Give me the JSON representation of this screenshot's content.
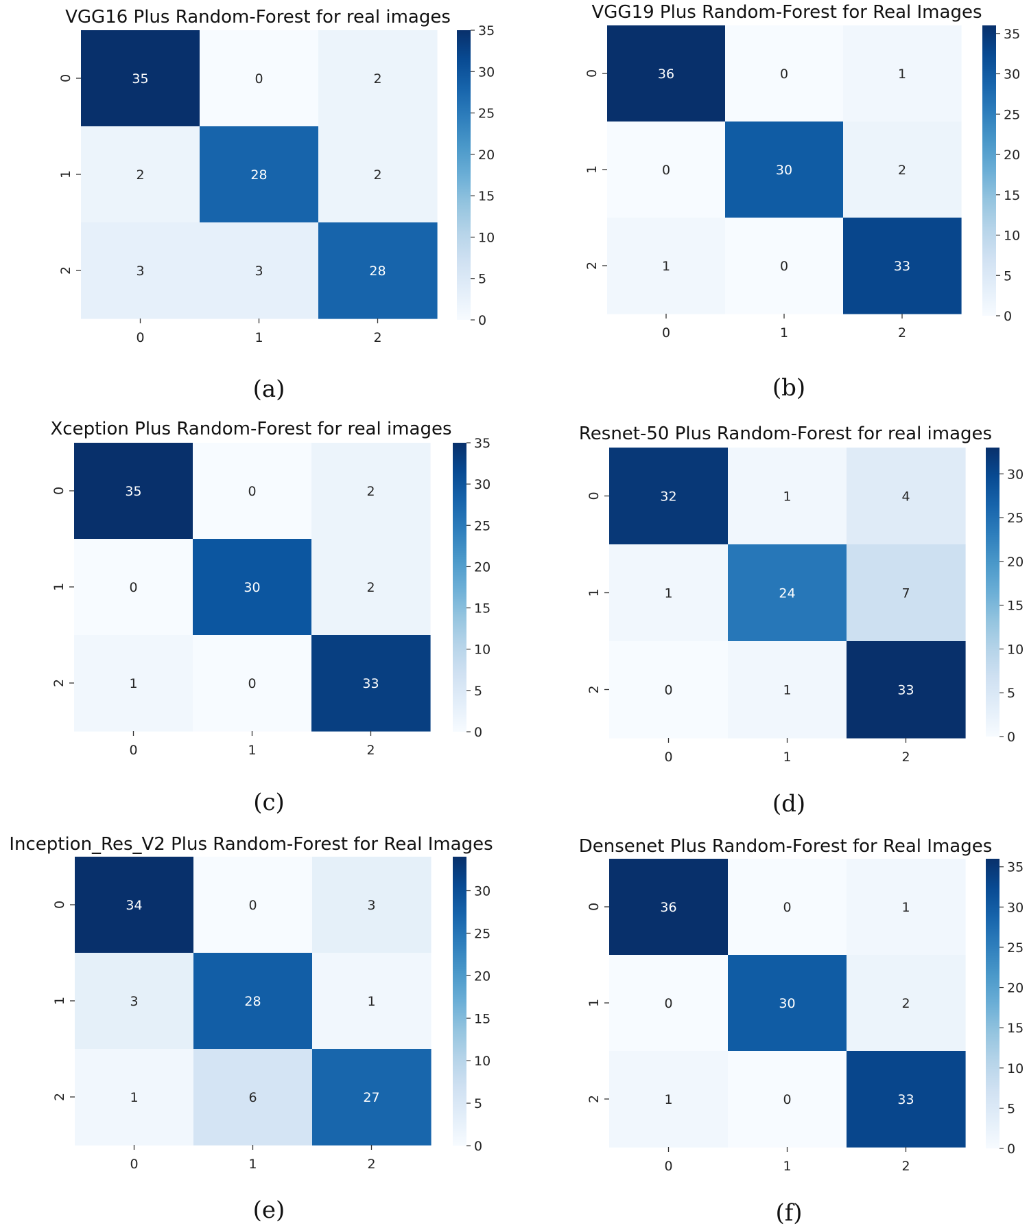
{
  "chart_data": [
    {
      "type": "heatmap",
      "title": "VGG16 Plus Random-Forest for real images",
      "caption": "(a)",
      "x_categories": [
        "0",
        "1",
        "2"
      ],
      "y_categories": [
        "0",
        "1",
        "2"
      ],
      "values": [
        [
          35,
          0,
          2
        ],
        [
          2,
          28,
          2
        ],
        [
          3,
          3,
          28
        ]
      ],
      "colorbar_ticks": [
        0,
        5,
        10,
        15,
        20,
        25,
        30,
        35
      ],
      "color_range": [
        0,
        35
      ],
      "colormap": "Blues"
    },
    {
      "type": "heatmap",
      "title": "VGG19 Plus Random-Forest for Real Images",
      "caption": "(b)",
      "x_categories": [
        "0",
        "1",
        "2"
      ],
      "y_categories": [
        "0",
        "1",
        "2"
      ],
      "values": [
        [
          36,
          0,
          1
        ],
        [
          0,
          30,
          2
        ],
        [
          1,
          0,
          33
        ]
      ],
      "colorbar_ticks": [
        0,
        5,
        10,
        15,
        20,
        25,
        30,
        35
      ],
      "color_range": [
        0,
        36
      ],
      "colormap": "Blues"
    },
    {
      "type": "heatmap",
      "title": "Xception Plus Random-Forest for real images",
      "caption": "(c)",
      "x_categories": [
        "0",
        "1",
        "2"
      ],
      "y_categories": [
        "0",
        "1",
        "2"
      ],
      "values": [
        [
          35,
          0,
          2
        ],
        [
          0,
          30,
          2
        ],
        [
          1,
          0,
          33
        ]
      ],
      "colorbar_ticks": [
        0,
        5,
        10,
        15,
        20,
        25,
        30,
        35
      ],
      "color_range": [
        0,
        35
      ],
      "colormap": "Blues"
    },
    {
      "type": "heatmap",
      "title": "Resnet-50 Plus Random-Forest for real images",
      "caption": "(d)",
      "x_categories": [
        "0",
        "1",
        "2"
      ],
      "y_categories": [
        "0",
        "1",
        "2"
      ],
      "values": [
        [
          32,
          1,
          4
        ],
        [
          1,
          24,
          7
        ],
        [
          0,
          1,
          33
        ]
      ],
      "colorbar_ticks": [
        0,
        5,
        10,
        15,
        20,
        25,
        30
      ],
      "color_range": [
        0,
        33
      ],
      "colormap": "Blues"
    },
    {
      "type": "heatmap",
      "title": "Inception_Res_V2 Plus Random-Forest for Real Images",
      "caption": "(e)",
      "x_categories": [
        "0",
        "1",
        "2"
      ],
      "y_categories": [
        "0",
        "1",
        "2"
      ],
      "values": [
        [
          34,
          0,
          3
        ],
        [
          3,
          28,
          1
        ],
        [
          1,
          6,
          27
        ]
      ],
      "colorbar_ticks": [
        0,
        5,
        10,
        15,
        20,
        25,
        30
      ],
      "color_range": [
        0,
        34
      ],
      "colormap": "Blues"
    },
    {
      "type": "heatmap",
      "title": "Densenet Plus Random-Forest for Real Images",
      "caption": "(f)",
      "x_categories": [
        "0",
        "1",
        "2"
      ],
      "y_categories": [
        "0",
        "1",
        "2"
      ],
      "values": [
        [
          36,
          0,
          1
        ],
        [
          0,
          30,
          2
        ],
        [
          1,
          0,
          33
        ]
      ],
      "colorbar_ticks": [
        0,
        5,
        10,
        15,
        20,
        25,
        30,
        35
      ],
      "color_range": [
        0,
        36
      ],
      "colormap": "Blues"
    }
  ]
}
